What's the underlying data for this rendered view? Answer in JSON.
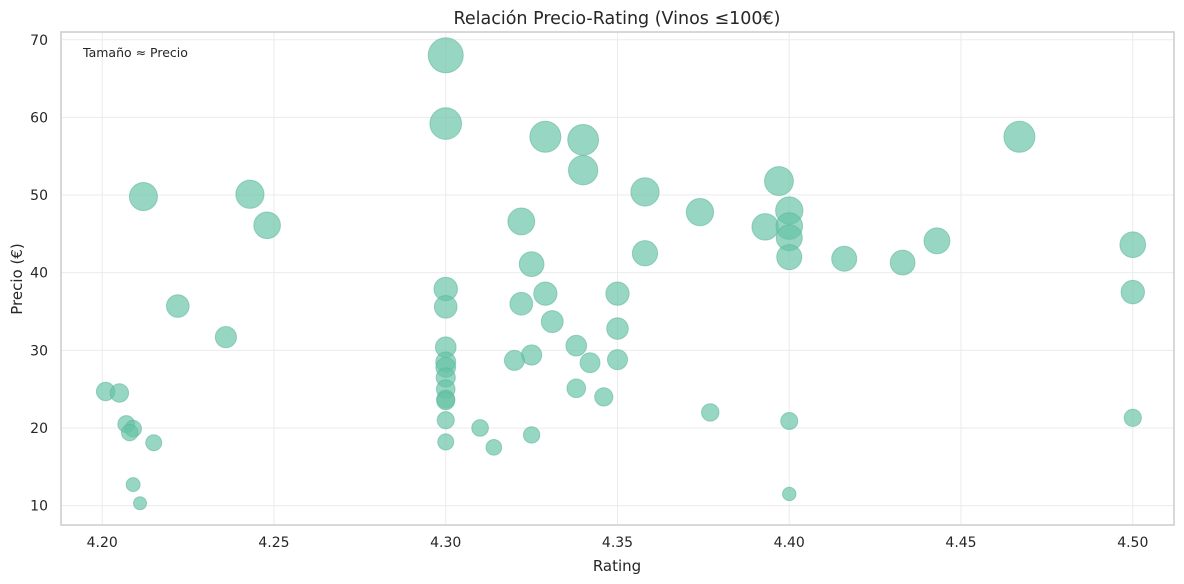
{
  "chart_data": {
    "type": "scatter",
    "title": "Relación Precio-Rating (Vinos ≤100€)",
    "xlabel": "Rating",
    "ylabel": "Precio (€)",
    "annotation": "Tamaño ≈ Precio",
    "xlim": [
      4.188,
      4.512
    ],
    "ylim": [
      7.5,
      71
    ],
    "xticks": [
      4.2,
      4.25,
      4.3,
      4.35,
      4.4,
      4.45,
      4.5
    ],
    "xtick_labels": [
      "4.20",
      "4.25",
      "4.30",
      "4.35",
      "4.40",
      "4.45",
      "4.50"
    ],
    "yticks": [
      10,
      20,
      30,
      40,
      50,
      60,
      70
    ],
    "ytick_labels": [
      "10",
      "20",
      "30",
      "40",
      "50",
      "60",
      "70"
    ],
    "grid": true,
    "color": "#66c2a5",
    "size_encodes": "Precio",
    "points": [
      {
        "x": 4.3,
        "y": 68.0
      },
      {
        "x": 4.3,
        "y": 59.2
      },
      {
        "x": 4.329,
        "y": 57.5
      },
      {
        "x": 4.34,
        "y": 57.1
      },
      {
        "x": 4.467,
        "y": 57.5
      },
      {
        "x": 4.34,
        "y": 53.2
      },
      {
        "x": 4.397,
        "y": 51.8
      },
      {
        "x": 4.358,
        "y": 50.4
      },
      {
        "x": 4.243,
        "y": 50.1
      },
      {
        "x": 4.212,
        "y": 49.8
      },
      {
        "x": 4.4,
        "y": 48.0
      },
      {
        "x": 4.374,
        "y": 47.8
      },
      {
        "x": 4.322,
        "y": 46.6
      },
      {
        "x": 4.248,
        "y": 46.1
      },
      {
        "x": 4.393,
        "y": 45.9
      },
      {
        "x": 4.4,
        "y": 46.0
      },
      {
        "x": 4.4,
        "y": 44.5
      },
      {
        "x": 4.443,
        "y": 44.1
      },
      {
        "x": 4.5,
        "y": 43.6
      },
      {
        "x": 4.358,
        "y": 42.5
      },
      {
        "x": 4.4,
        "y": 42.0
      },
      {
        "x": 4.416,
        "y": 41.8
      },
      {
        "x": 4.433,
        "y": 41.3
      },
      {
        "x": 4.325,
        "y": 41.1
      },
      {
        "x": 4.3,
        "y": 37.9
      },
      {
        "x": 4.5,
        "y": 37.5
      },
      {
        "x": 4.35,
        "y": 37.3
      },
      {
        "x": 4.329,
        "y": 37.3
      },
      {
        "x": 4.322,
        "y": 36.0
      },
      {
        "x": 4.222,
        "y": 35.7
      },
      {
        "x": 4.3,
        "y": 35.6
      },
      {
        "x": 4.331,
        "y": 33.7
      },
      {
        "x": 4.35,
        "y": 32.8
      },
      {
        "x": 4.236,
        "y": 31.7
      },
      {
        "x": 4.338,
        "y": 30.6
      },
      {
        "x": 4.3,
        "y": 30.4
      },
      {
        "x": 4.325,
        "y": 29.4
      },
      {
        "x": 4.35,
        "y": 28.8
      },
      {
        "x": 4.32,
        "y": 28.7
      },
      {
        "x": 4.3,
        "y": 28.5
      },
      {
        "x": 4.342,
        "y": 28.4
      },
      {
        "x": 4.3,
        "y": 27.8
      },
      {
        "x": 4.3,
        "y": 26.5
      },
      {
        "x": 4.338,
        "y": 25.1
      },
      {
        "x": 4.3,
        "y": 25.0
      },
      {
        "x": 4.201,
        "y": 24.7
      },
      {
        "x": 4.205,
        "y": 24.5
      },
      {
        "x": 4.346,
        "y": 24.0
      },
      {
        "x": 4.3,
        "y": 23.7
      },
      {
        "x": 4.3,
        "y": 23.5
      },
      {
        "x": 4.377,
        "y": 22.0
      },
      {
        "x": 4.5,
        "y": 21.3
      },
      {
        "x": 4.3,
        "y": 21.0
      },
      {
        "x": 4.4,
        "y": 20.9
      },
      {
        "x": 4.207,
        "y": 20.5
      },
      {
        "x": 4.31,
        "y": 20.0
      },
      {
        "x": 4.209,
        "y": 19.9
      },
      {
        "x": 4.208,
        "y": 19.4
      },
      {
        "x": 4.325,
        "y": 19.1
      },
      {
        "x": 4.3,
        "y": 18.2
      },
      {
        "x": 4.215,
        "y": 18.1
      },
      {
        "x": 4.314,
        "y": 17.5
      },
      {
        "x": 4.209,
        "y": 12.7
      },
      {
        "x": 4.4,
        "y": 11.5
      },
      {
        "x": 4.211,
        "y": 10.3
      }
    ]
  }
}
